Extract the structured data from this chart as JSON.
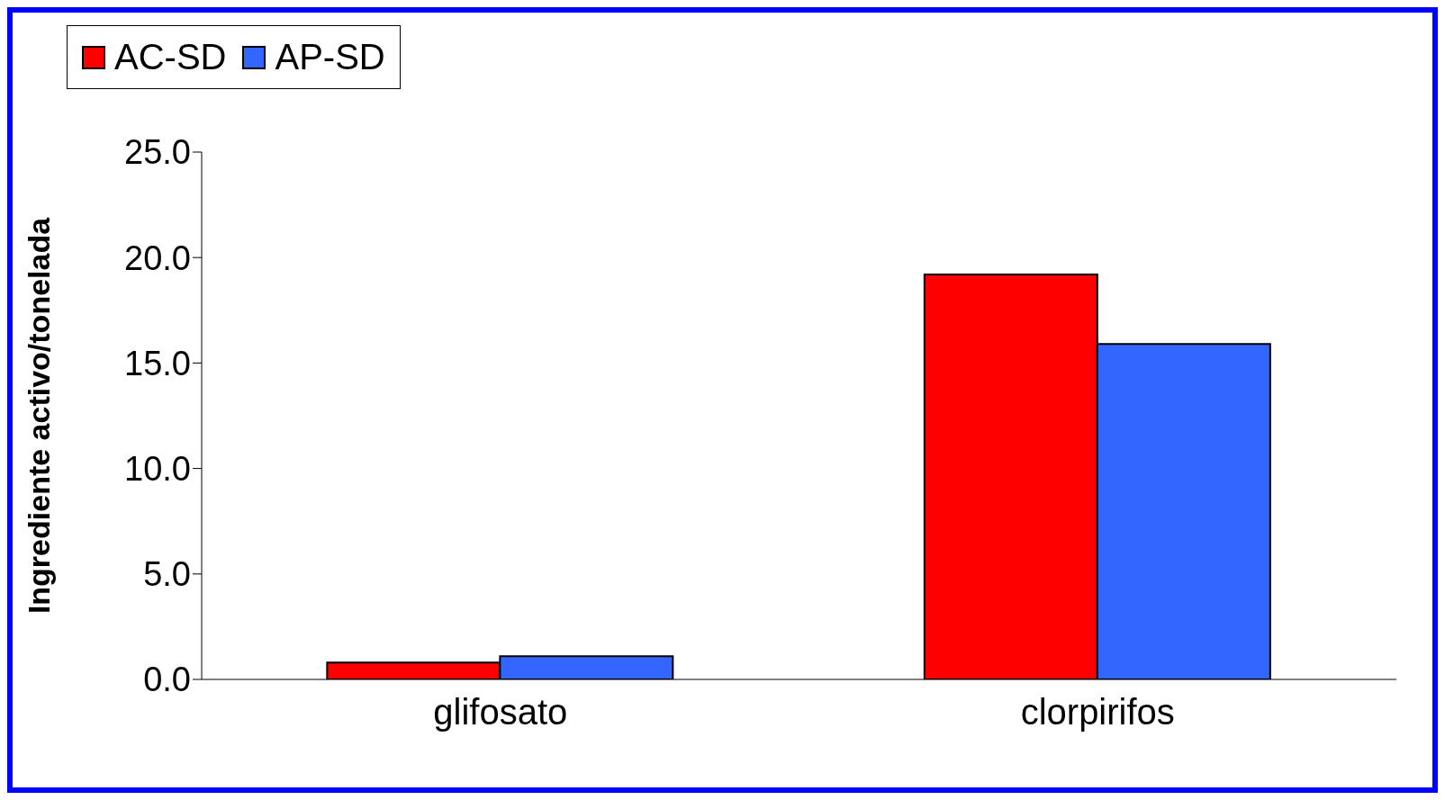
{
  "chart_data": {
    "type": "bar",
    "ylabel": "Ingrediente activo/tonelada",
    "categories": [
      "glifosato",
      "clorpirifos"
    ],
    "series": [
      {
        "name": "AC-SD",
        "color": "#ff0000",
        "values": [
          0.8,
          19.2
        ]
      },
      {
        "name": "AP-SD",
        "color": "#3366ff",
        "values": [
          1.1,
          15.9
        ]
      }
    ],
    "ylim": [
      0,
      25
    ],
    "yticks": [
      {
        "value": 0,
        "label": "0.0"
      },
      {
        "value": 5,
        "label": "5.0"
      },
      {
        "value": 10,
        "label": "10.0"
      },
      {
        "value": 15,
        "label": "15.0"
      },
      {
        "value": 20,
        "label": "20.0"
      },
      {
        "value": 25,
        "label": "25.0"
      }
    ],
    "grid": false,
    "legend": "top"
  }
}
